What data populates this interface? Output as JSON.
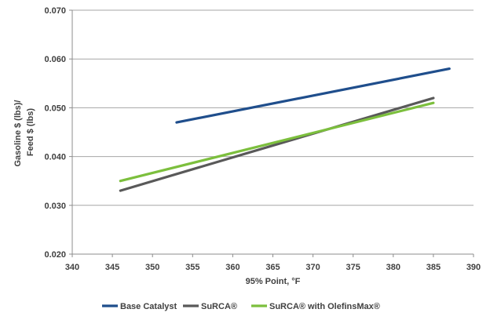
{
  "chart_data": {
    "type": "line",
    "title": "",
    "xlabel": "95% Point, °F",
    "ylabel_lines": [
      "Gasoline $ (lbs)/",
      "Feed $ (lbs)"
    ],
    "xlim": [
      340,
      390
    ],
    "ylim": [
      0.02,
      0.07
    ],
    "x_ticks": [
      340,
      345,
      350,
      355,
      360,
      365,
      370,
      375,
      380,
      385,
      390
    ],
    "x_tick_labels": [
      "340",
      "345",
      "350",
      "355",
      "360",
      "365",
      "370",
      "375",
      "380",
      "385",
      "390"
    ],
    "y_ticks": [
      0.02,
      0.03,
      0.04,
      0.05,
      0.06,
      0.07
    ],
    "y_tick_labels": [
      "0.020",
      "0.030",
      "0.040",
      "0.050",
      "0.060",
      "0.070"
    ],
    "grid": "horizontal",
    "legend_position": "bottom",
    "series": [
      {
        "name": "Base Catalyst",
        "color": "#1f4e8c",
        "points": [
          [
            353,
            0.047
          ],
          [
            387,
            0.058
          ]
        ]
      },
      {
        "name": "SuRCA®",
        "color": "#595959",
        "points": [
          [
            346,
            0.033
          ],
          [
            385,
            0.052
          ]
        ]
      },
      {
        "name": "SuRCA® with OlefinsMax®",
        "color": "#7cbf3d",
        "points": [
          [
            346,
            0.035
          ],
          [
            385,
            0.051
          ]
        ]
      }
    ]
  }
}
